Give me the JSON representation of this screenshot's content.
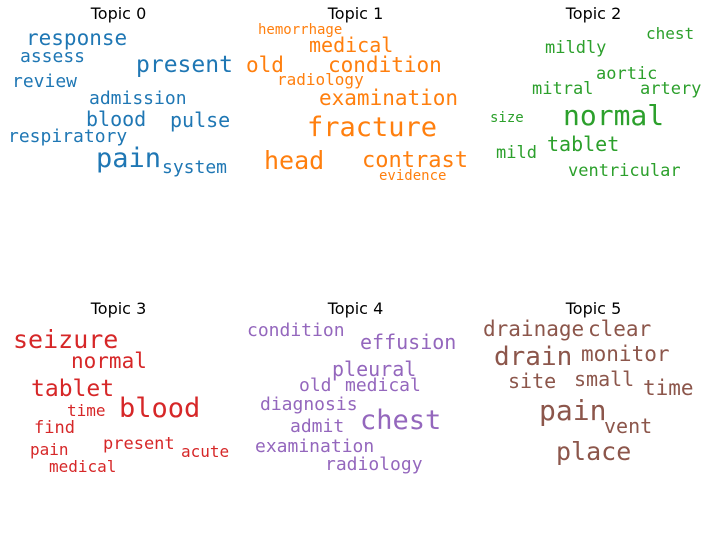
{
  "topics": [
    {
      "title": "Topic 0",
      "color": "#1f77b4",
      "words": [
        "response",
        "assess",
        "present",
        "review",
        "admission",
        "blood",
        "pulse",
        "respiratory",
        "pain",
        "system"
      ]
    },
    {
      "title": "Topic 1",
      "color": "#ff7f0e",
      "words": [
        "hemorrhage",
        "medical",
        "old",
        "condition",
        "radiology",
        "examination",
        "fracture",
        "head",
        "contrast",
        "evidence"
      ]
    },
    {
      "title": "Topic 2",
      "color": "#2ca02c",
      "words": [
        "chest",
        "mildly",
        "aortic",
        "mitral",
        "artery",
        "normal",
        "size",
        "tablet",
        "mild",
        "ventricular"
      ]
    },
    {
      "title": "Topic 3",
      "color": "#d62728",
      "words": [
        "seizure",
        "normal",
        "tablet",
        "blood",
        "time",
        "find",
        "present",
        "pain",
        "acute",
        "medical"
      ]
    },
    {
      "title": "Topic 4",
      "color": "#9467bd",
      "words": [
        "condition",
        "effusion",
        "pleural",
        "old",
        "medical",
        "diagnosis",
        "chest",
        "admit",
        "examination",
        "radiology"
      ]
    },
    {
      "title": "Topic 5",
      "color": "#8c564b",
      "words": [
        "drainage",
        "clear",
        "drain",
        "monitor",
        "site",
        "small",
        "time",
        "pain",
        "vent",
        "place"
      ]
    }
  ]
}
